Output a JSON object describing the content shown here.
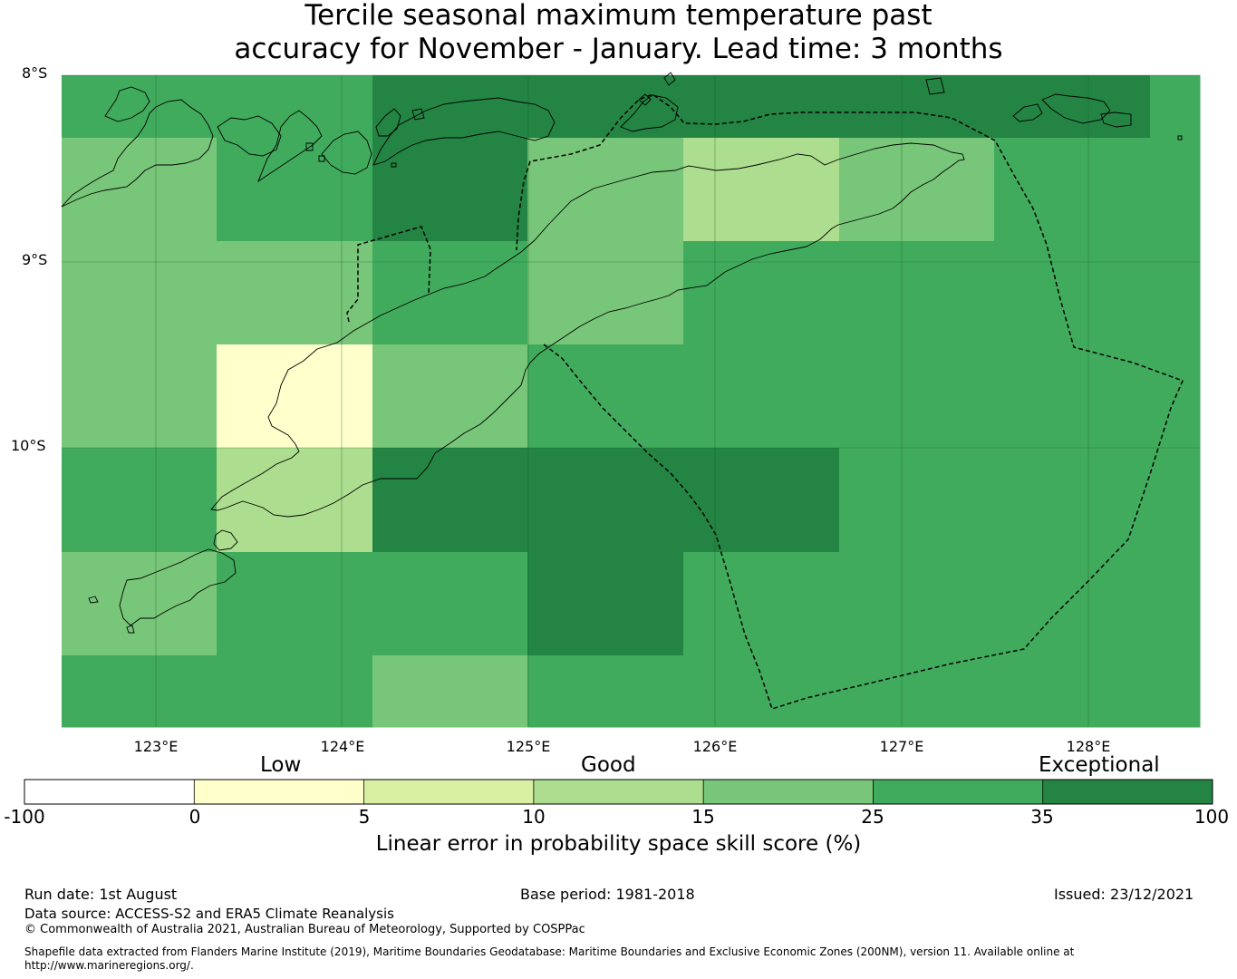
{
  "title": {
    "line1": "Tercile seasonal maximum temperature past",
    "line2": "accuracy for November - January. Lead time: 3 months"
  },
  "map": {
    "lat_labels": [
      "8°S",
      "9°S",
      "10°S"
    ],
    "lon_labels": [
      "123°E",
      "124°E",
      "125°E",
      "126°E",
      "127°E",
      "128°E"
    ],
    "grid": {
      "rows": [
        [
          30,
          30,
          40,
          40,
          40,
          40,
          40,
          30
        ],
        [
          20,
          30,
          40,
          20,
          12,
          20,
          30,
          30
        ],
        [
          20,
          20,
          30,
          20,
          30,
          30,
          30,
          30
        ],
        [
          20,
          2,
          20,
          30,
          30,
          30,
          30,
          30
        ],
        [
          30,
          12,
          40,
          40,
          40,
          30,
          30,
          30
        ],
        [
          20,
          30,
          30,
          40,
          30,
          30,
          30,
          30
        ],
        [
          30,
          30,
          20,
          30,
          30,
          30,
          30,
          30
        ]
      ]
    },
    "colors": {
      "coast": "#000000",
      "boundary": "#000000"
    }
  },
  "colorbar": {
    "category_labels": [
      "Low",
      "Good",
      "Exceptional"
    ],
    "ticks": [
      "-100",
      "0",
      "5",
      "10",
      "15",
      "25",
      "35",
      "100"
    ],
    "bins": [
      {
        "from": -100,
        "to": 0,
        "color": "#ffffff"
      },
      {
        "from": 0,
        "to": 5,
        "color": "#ffffcc"
      },
      {
        "from": 5,
        "to": 10,
        "color": "#d9f0a3"
      },
      {
        "from": 10,
        "to": 15,
        "color": "#addd8e"
      },
      {
        "from": 15,
        "to": 25,
        "color": "#78c679"
      },
      {
        "from": 25,
        "to": 35,
        "color": "#41ab5d"
      },
      {
        "from": 35,
        "to": 100,
        "color": "#238443"
      }
    ],
    "label": "Linear error in probability space skill score (%)"
  },
  "footer": {
    "run_date": "Run date: 1st August",
    "base_period": "Base period: 1981-2018",
    "issued": "Issued: 23/12/2021",
    "data_source": "Data source: ACCESS-S2 and ERA5 Climate Reanalysis",
    "copyright": "© Commonwealth of Australia 2021, Australian Bureau of Meteorology, Supported by COSPPac",
    "shapefile_line1": "Shapefile data extracted from Flanders Marine Institute (2019), Maritime Boundaries Geodatabase: Maritime Boundaries and Exclusive Economic Zones (200NM), version 11. Available online at",
    "shapefile_line2": "http://www.marineregions.org/."
  }
}
